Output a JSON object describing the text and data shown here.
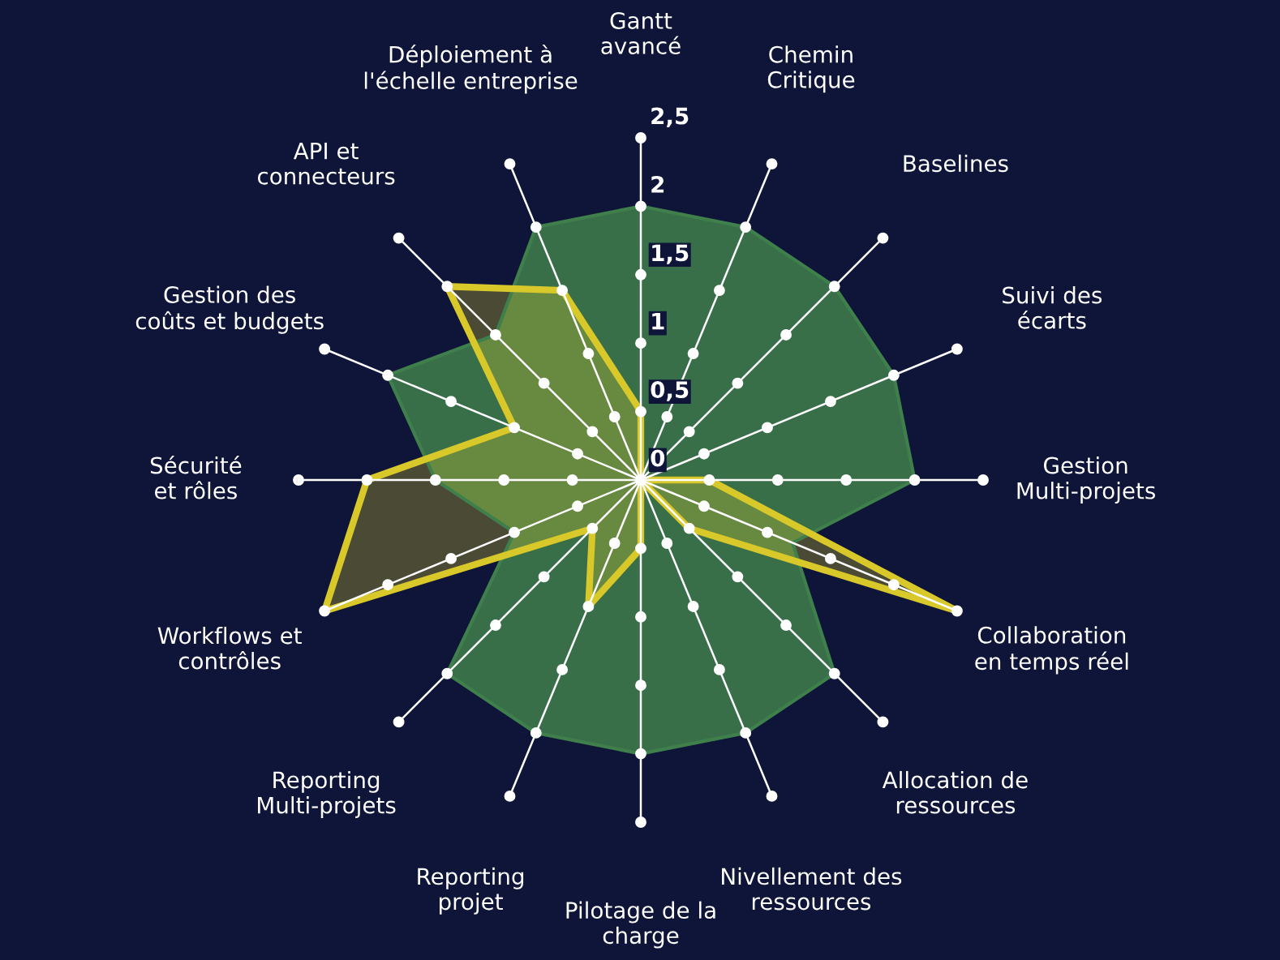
{
  "chart_data": {
    "type": "radar",
    "categories": [
      "Gantt\navancé",
      "Chemin\nCritique",
      "Baselines",
      "Suivi des\nécarts",
      "Gestion\nMulti-projets",
      "Collaboration\nen temps réel",
      "Allocation de\nressources",
      "Nivellement des\nressources",
      "Pilotage de la\ncharge",
      "Reporting\nprojet",
      "Reporting\nMulti-projets",
      "Workflows et\ncontrôles",
      "Sécurité\net rôles",
      "Gestion des\ncoûts et budgets",
      "API et\nconnecteurs",
      "Déploiement à\nl'échelle entreprise"
    ],
    "series": [
      {
        "color": "#3f7f4c",
        "values": [
          2,
          2,
          2,
          2,
          2,
          1.2,
          2,
          2,
          2,
          2,
          2,
          1,
          1.5,
          2,
          1.5,
          2
        ]
      },
      {
        "color": "#d8c82a",
        "values": [
          0.5,
          0,
          0,
          0,
          0.5,
          2.5,
          0.5,
          0,
          0.5,
          1,
          0.5,
          2.5,
          2,
          1,
          2,
          1.5
        ]
      }
    ],
    "ylim": [
      0,
      2.5
    ],
    "yticks": [
      0,
      {
        "value": 0.5,
        "label": "0,5"
      },
      1,
      {
        "value": 1.5,
        "label": "1,5"
      },
      2,
      {
        "value": 2.5,
        "label": "2,5"
      }
    ],
    "grid": true,
    "marker": "none"
  }
}
